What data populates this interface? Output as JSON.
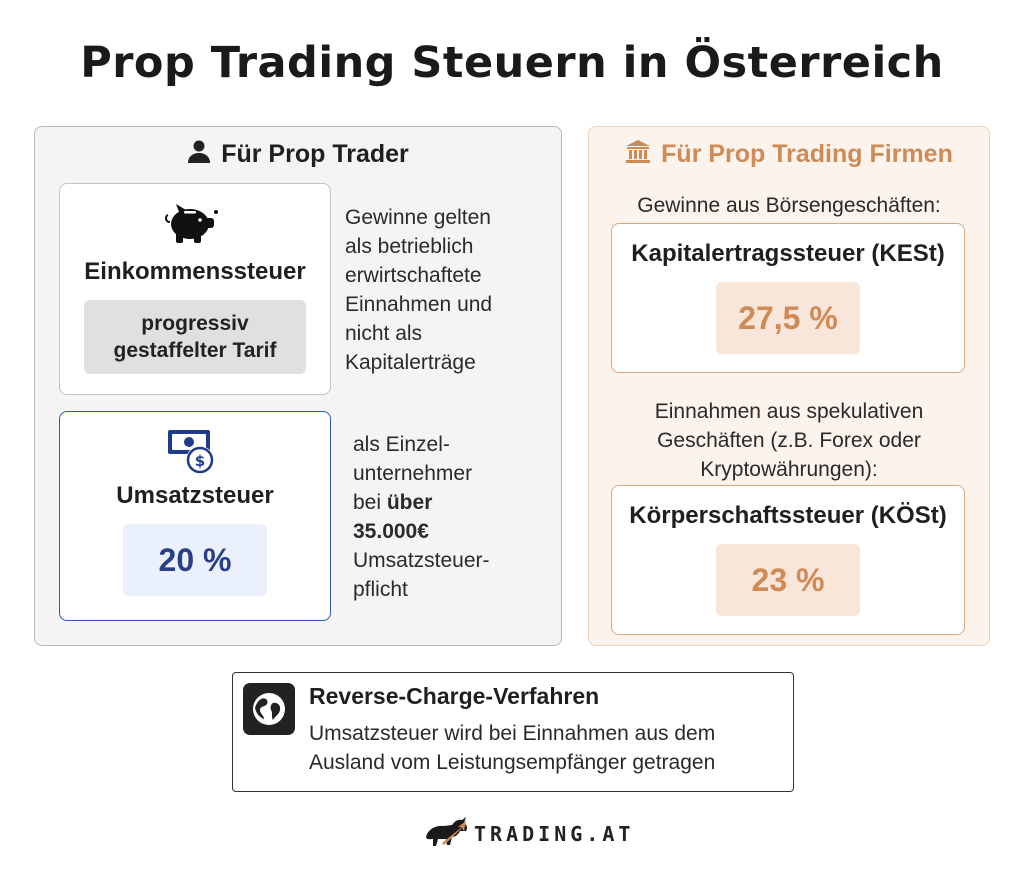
{
  "title": "Prop Trading Steuern in Österreich",
  "trader": {
    "heading": "Für Prop Trader",
    "einkommen": {
      "title": "Einkommenssteuer",
      "tag_line1": "progressiv",
      "tag_line2": "gestaffelter Tarif",
      "desc": [
        "Gewinne gelten",
        "als betrieblich",
        "erwirtschaftete",
        "Einnahmen und",
        "nicht als",
        "Kapitalerträge"
      ]
    },
    "umsatz": {
      "title": "Umsatzsteuer",
      "rate": "20 %",
      "desc_l1": "als Einzel-",
      "desc_l2": "unternehmer",
      "desc_l3_pre": "bei ",
      "desc_l3_bold": "über",
      "desc_l4_bold": "35.000€",
      "desc_l5": "Umsatzsteuer-",
      "desc_l6": "pflicht"
    }
  },
  "firm": {
    "heading": "Für Prop Trading Firmen",
    "sub1": "Gewinne aus Börsengeschäften:",
    "kest": {
      "title": "Kapitalertragssteuer (KESt)",
      "rate": "27,5 %"
    },
    "sub2": [
      "Einnahmen aus spekulativen",
      "Geschäften (z.B. Forex oder",
      "Kryptowährungen):"
    ],
    "koest": {
      "title": "Körperschaftssteuer (KÖSt)",
      "rate": "23 %"
    }
  },
  "reverse_charge": {
    "title": "Reverse-Charge-Verfahren",
    "text_l1": "Umsatzsteuer wird bei Einnahmen aus dem",
    "text_l2": "Ausland vom Leistungsempfänger getragen"
  },
  "logo": {
    "word": "TRADING.AT"
  },
  "colors": {
    "accent_orange": "#cf8a55",
    "accent_blue": "#2b3f86"
  },
  "icons": [
    "user-icon",
    "bank-icon",
    "piggy-bank-icon",
    "money-bill-dollar-icon",
    "globe-icon",
    "bull-logo-icon"
  ]
}
